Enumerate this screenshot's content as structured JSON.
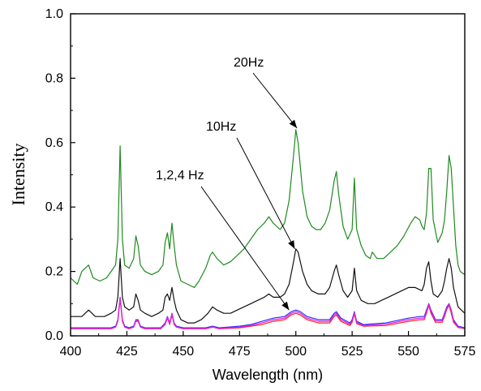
{
  "chart_data": {
    "type": "line",
    "xlabel": "Wavelength (nm)",
    "ylabel": "Intensity",
    "xlim": [
      400,
      575
    ],
    "ylim": [
      0.0,
      1.0
    ],
    "x_ticks": [
      400,
      425,
      450,
      475,
      500,
      525,
      550,
      575
    ],
    "x_tick_labels": [
      "400",
      "425",
      "450",
      "475",
      "500",
      "525",
      "550",
      "575"
    ],
    "y_ticks": [
      0.0,
      0.2,
      0.4,
      0.6,
      0.8,
      1.0
    ],
    "y_tick_labels": [
      "0.0",
      "0.2",
      "0.4",
      "0.6",
      "0.8",
      "1.0"
    ],
    "grid": false,
    "colors": {
      "s20": "#1f8a1f",
      "s10": "#111111",
      "s1": "#2a2aff",
      "s2": "#ff2020",
      "s4": "#e020e0"
    },
    "series": [
      {
        "key": "s20",
        "x": [
          400,
          403,
          405,
          408,
          410,
          413,
          416,
          418,
          420,
          421,
          422,
          423,
          424,
          426,
          428,
          429,
          430,
          431,
          433,
          436,
          439,
          441,
          442,
          443,
          444,
          445,
          446,
          447,
          449,
          452,
          455,
          457,
          460,
          462,
          463,
          465,
          468,
          471,
          474,
          477,
          480,
          483,
          486,
          488,
          490,
          493,
          495,
          497,
          499,
          500,
          501,
          503,
          505,
          507,
          509,
          511,
          513,
          515,
          517,
          518,
          519,
          521,
          523,
          525,
          526,
          527,
          529,
          531,
          533,
          534,
          536,
          539,
          542,
          545,
          548,
          551,
          553,
          555,
          556,
          557,
          558,
          559,
          560,
          561,
          563,
          565,
          566,
          567,
          568,
          569,
          570,
          571,
          572,
          573,
          575
        ],
        "y": [
          0.18,
          0.16,
          0.2,
          0.22,
          0.18,
          0.17,
          0.18,
          0.2,
          0.22,
          0.3,
          0.59,
          0.3,
          0.22,
          0.21,
          0.24,
          0.31,
          0.28,
          0.22,
          0.2,
          0.19,
          0.2,
          0.22,
          0.29,
          0.32,
          0.27,
          0.35,
          0.28,
          0.22,
          0.17,
          0.16,
          0.15,
          0.17,
          0.21,
          0.25,
          0.26,
          0.24,
          0.22,
          0.23,
          0.25,
          0.27,
          0.3,
          0.33,
          0.35,
          0.37,
          0.35,
          0.33,
          0.35,
          0.42,
          0.56,
          0.64,
          0.6,
          0.45,
          0.37,
          0.34,
          0.33,
          0.33,
          0.35,
          0.39,
          0.48,
          0.51,
          0.44,
          0.34,
          0.3,
          0.33,
          0.49,
          0.33,
          0.28,
          0.25,
          0.24,
          0.26,
          0.24,
          0.24,
          0.26,
          0.28,
          0.31,
          0.35,
          0.37,
          0.36,
          0.34,
          0.33,
          0.38,
          0.52,
          0.52,
          0.36,
          0.29,
          0.32,
          0.36,
          0.45,
          0.56,
          0.52,
          0.4,
          0.28,
          0.22,
          0.2,
          0.19
        ]
      },
      {
        "key": "s10",
        "x": [
          400,
          405,
          408,
          411,
          415,
          418,
          420,
          421,
          422,
          423,
          424,
          426,
          428,
          429,
          430,
          431,
          433,
          436,
          439,
          441,
          442,
          443,
          444,
          445,
          446,
          447,
          449,
          452,
          455,
          458,
          461,
          463,
          465,
          468,
          471,
          474,
          477,
          480,
          483,
          486,
          488,
          490,
          493,
          495,
          497,
          499,
          500,
          501,
          503,
          505,
          507,
          510,
          513,
          515,
          517,
          518,
          519,
          521,
          523,
          525,
          526,
          527,
          529,
          532,
          535,
          538,
          541,
          544,
          547,
          550,
          553,
          556,
          557,
          558,
          559,
          560,
          561,
          563,
          565,
          566,
          567,
          568,
          569,
          570,
          572,
          575
        ],
        "y": [
          0.06,
          0.06,
          0.08,
          0.06,
          0.06,
          0.07,
          0.08,
          0.12,
          0.24,
          0.12,
          0.09,
          0.08,
          0.09,
          0.13,
          0.11,
          0.08,
          0.07,
          0.06,
          0.07,
          0.08,
          0.12,
          0.13,
          0.11,
          0.15,
          0.11,
          0.08,
          0.05,
          0.04,
          0.04,
          0.05,
          0.07,
          0.09,
          0.08,
          0.07,
          0.07,
          0.08,
          0.09,
          0.1,
          0.11,
          0.12,
          0.13,
          0.12,
          0.12,
          0.13,
          0.16,
          0.23,
          0.27,
          0.26,
          0.2,
          0.16,
          0.14,
          0.13,
          0.13,
          0.15,
          0.2,
          0.22,
          0.19,
          0.14,
          0.12,
          0.14,
          0.21,
          0.14,
          0.11,
          0.1,
          0.1,
          0.11,
          0.12,
          0.13,
          0.14,
          0.15,
          0.15,
          0.14,
          0.16,
          0.21,
          0.23,
          0.17,
          0.13,
          0.12,
          0.14,
          0.17,
          0.21,
          0.24,
          0.21,
          0.15,
          0.09,
          0.07
        ]
      },
      {
        "key": "s1",
        "x": [
          400,
          410,
          418,
          420,
          421,
          422,
          423,
          424,
          426,
          428,
          429,
          430,
          431,
          433,
          440,
          442,
          443,
          444,
          445,
          446,
          447,
          450,
          460,
          463,
          466,
          475,
          480,
          485,
          490,
          495,
          498,
          500,
          502,
          505,
          510,
          515,
          517,
          518,
          520,
          524,
          525,
          526,
          527,
          530,
          540,
          550,
          555,
          557,
          558,
          559,
          560,
          562,
          565,
          566,
          567,
          568,
          569,
          570,
          572,
          575
        ],
        "y": [
          0.025,
          0.025,
          0.025,
          0.03,
          0.05,
          0.12,
          0.05,
          0.03,
          0.025,
          0.03,
          0.05,
          0.05,
          0.03,
          0.025,
          0.025,
          0.04,
          0.06,
          0.04,
          0.07,
          0.04,
          0.03,
          0.025,
          0.025,
          0.03,
          0.025,
          0.03,
          0.035,
          0.045,
          0.055,
          0.06,
          0.075,
          0.08,
          0.075,
          0.06,
          0.05,
          0.05,
          0.07,
          0.075,
          0.055,
          0.04,
          0.05,
          0.075,
          0.045,
          0.035,
          0.04,
          0.055,
          0.06,
          0.06,
          0.08,
          0.1,
          0.08,
          0.05,
          0.05,
          0.07,
          0.09,
          0.1,
          0.08,
          0.05,
          0.03,
          0.025
        ]
      },
      {
        "key": "s2",
        "x": [
          400,
          410,
          418,
          420,
          421,
          422,
          423,
          424,
          426,
          428,
          429,
          430,
          431,
          433,
          440,
          442,
          443,
          444,
          445,
          446,
          447,
          450,
          460,
          463,
          466,
          475,
          480,
          485,
          490,
          495,
          498,
          500,
          502,
          505,
          510,
          515,
          517,
          518,
          520,
          524,
          525,
          526,
          527,
          530,
          540,
          550,
          555,
          557,
          558,
          559,
          560,
          562,
          565,
          566,
          567,
          568,
          569,
          570,
          572,
          575
        ],
        "y": [
          0.022,
          0.022,
          0.022,
          0.027,
          0.045,
          0.115,
          0.045,
          0.027,
          0.022,
          0.027,
          0.045,
          0.045,
          0.027,
          0.022,
          0.022,
          0.035,
          0.055,
          0.035,
          0.065,
          0.035,
          0.027,
          0.022,
          0.022,
          0.027,
          0.022,
          0.025,
          0.03,
          0.035,
          0.045,
          0.05,
          0.065,
          0.07,
          0.065,
          0.05,
          0.04,
          0.04,
          0.06,
          0.065,
          0.045,
          0.032,
          0.042,
          0.068,
          0.038,
          0.03,
          0.032,
          0.045,
          0.05,
          0.05,
          0.07,
          0.095,
          0.07,
          0.042,
          0.042,
          0.06,
          0.082,
          0.095,
          0.07,
          0.042,
          0.026,
          0.022
        ]
      },
      {
        "key": "s4",
        "x": [
          400,
          410,
          418,
          420,
          421,
          422,
          423,
          424,
          426,
          428,
          429,
          430,
          431,
          433,
          440,
          442,
          443,
          444,
          445,
          446,
          447,
          450,
          460,
          463,
          466,
          475,
          480,
          485,
          490,
          495,
          498,
          500,
          502,
          505,
          510,
          515,
          517,
          518,
          520,
          524,
          525,
          526,
          527,
          530,
          540,
          550,
          555,
          557,
          558,
          559,
          560,
          562,
          565,
          566,
          567,
          568,
          569,
          570,
          572,
          575
        ],
        "y": [
          0.023,
          0.023,
          0.023,
          0.028,
          0.048,
          0.118,
          0.048,
          0.028,
          0.023,
          0.028,
          0.048,
          0.048,
          0.028,
          0.023,
          0.023,
          0.037,
          0.058,
          0.037,
          0.068,
          0.037,
          0.028,
          0.023,
          0.023,
          0.028,
          0.023,
          0.027,
          0.032,
          0.04,
          0.05,
          0.055,
          0.07,
          0.075,
          0.07,
          0.055,
          0.045,
          0.045,
          0.065,
          0.07,
          0.05,
          0.036,
          0.046,
          0.072,
          0.042,
          0.032,
          0.036,
          0.05,
          0.055,
          0.055,
          0.075,
          0.098,
          0.075,
          0.046,
          0.046,
          0.065,
          0.086,
          0.098,
          0.075,
          0.046,
          0.028,
          0.023
        ]
      }
    ],
    "annotations": [
      {
        "text": "20Hz",
        "target": [
          500.5,
          0.645
        ]
      },
      {
        "text": "10Hz",
        "target": [
          499.5,
          0.27
        ]
      },
      {
        "text": "1,2,4 Hz",
        "target": [
          497,
          0.08
        ]
      }
    ]
  }
}
